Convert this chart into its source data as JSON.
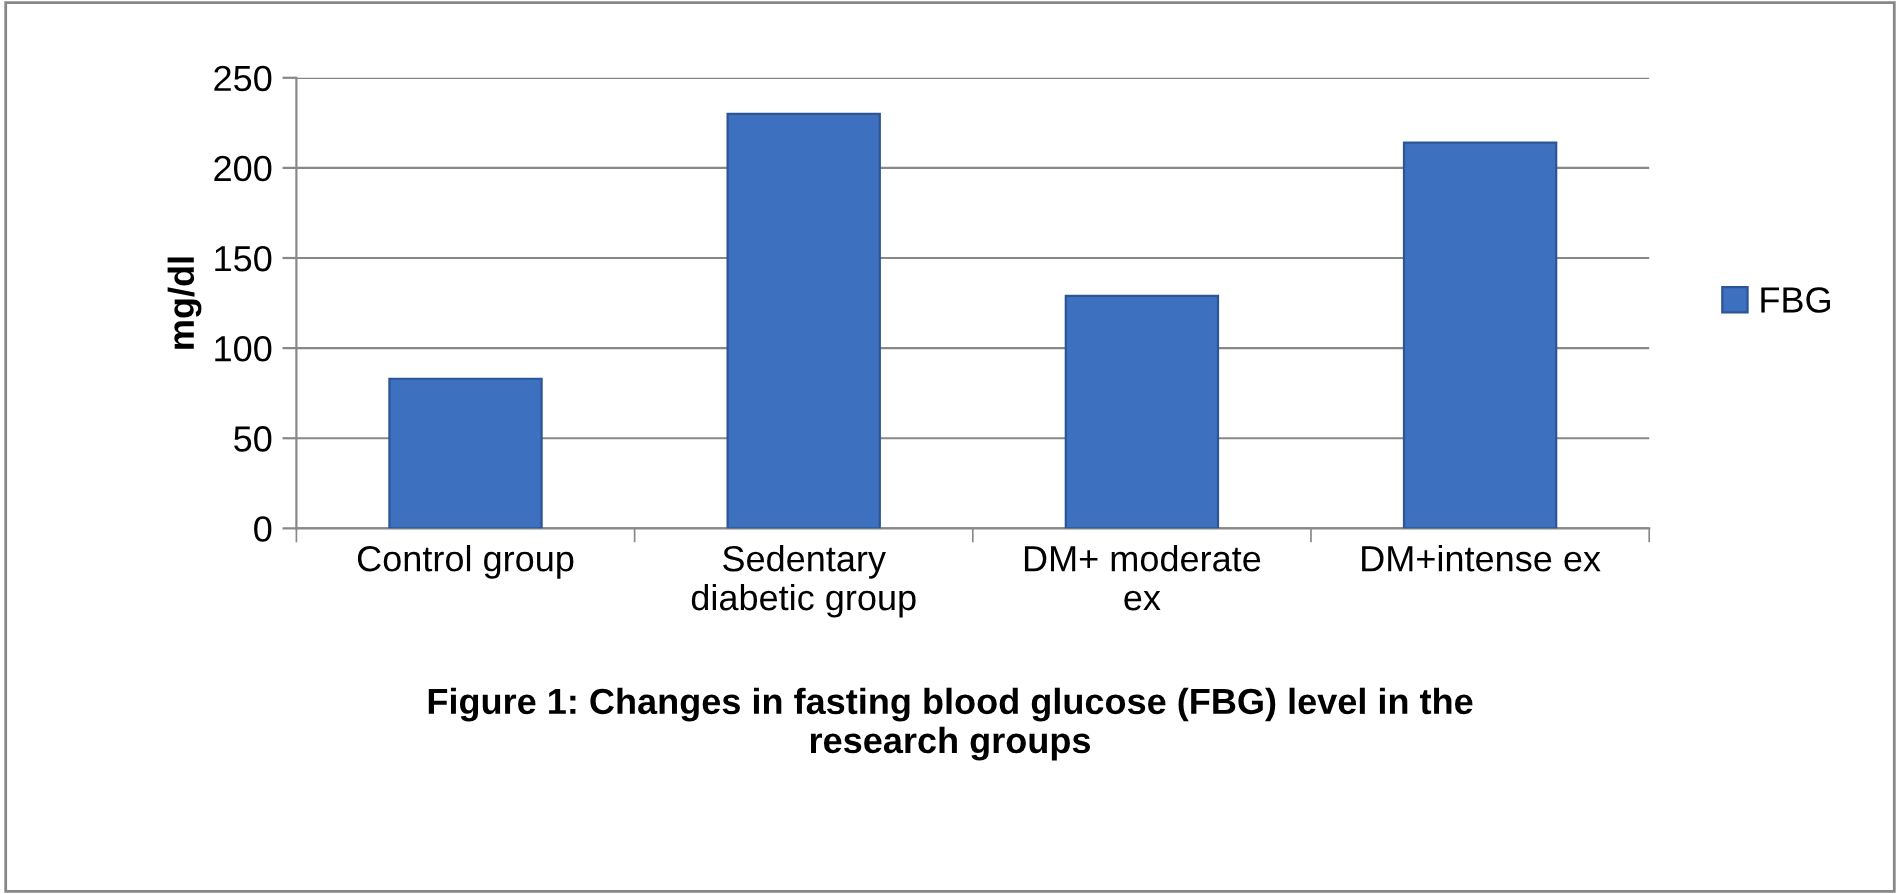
{
  "chart_data": {
    "type": "bar",
    "title": "Figure 1: Changes in fasting blood glucose (FBG) level in the\nresearch groups",
    "ylabel": "mg/dl",
    "categories": [
      "Control group",
      "Sedentary\ndiabetic group",
      "DM+ moderate\nex",
      "DM+intense ex"
    ],
    "series": [
      {
        "name": "FBG",
        "color": "#3d71c0",
        "values": [
          83,
          230,
          129,
          214
        ]
      }
    ],
    "ylim": [
      0,
      250
    ],
    "yticks": [
      0,
      50,
      100,
      150,
      200,
      250
    ],
    "grid": "y",
    "legend": "right"
  }
}
